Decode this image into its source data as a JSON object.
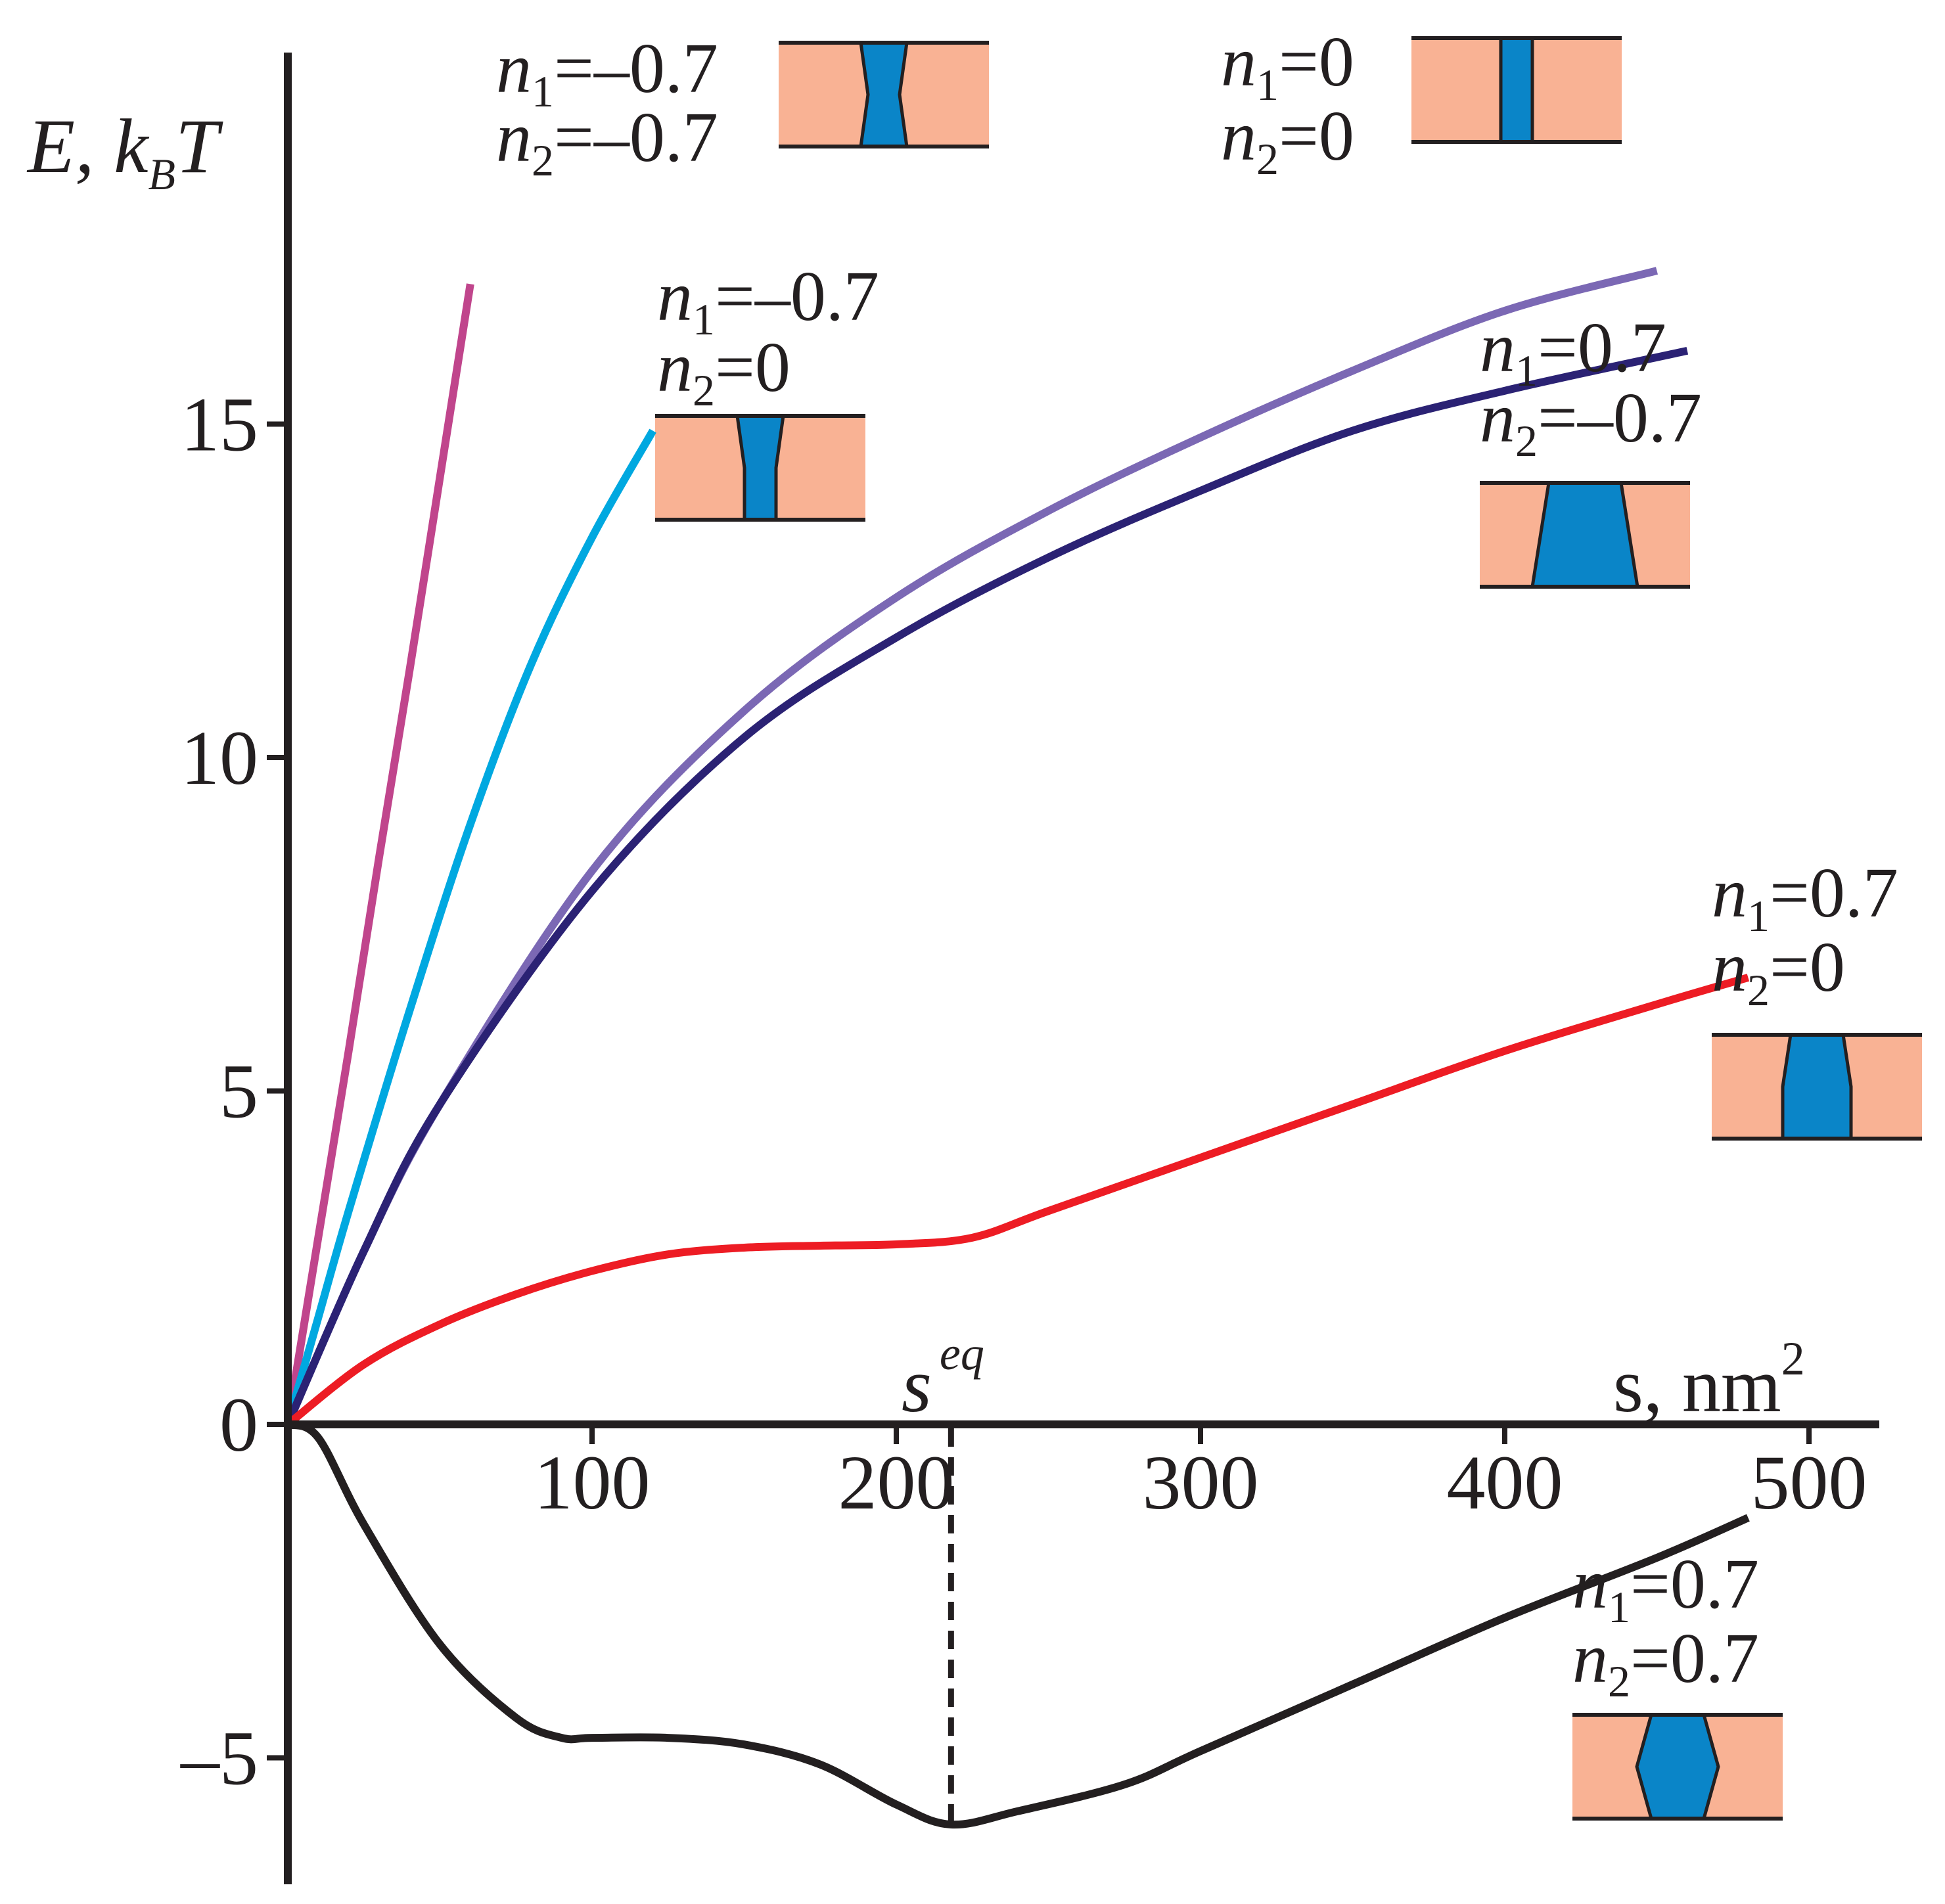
{
  "chart_data": {
    "type": "line",
    "title": "",
    "xlabel": "s, nm",
    "xlabel_superscript": "2",
    "ylabel": "E, k",
    "ylabel_subscript": "B",
    "ylabel_suffix": "T",
    "xlim": [
      -2,
      520
    ],
    "ylim": [
      -6.3,
      20
    ],
    "x_ticks": [
      100,
      200,
      300,
      400,
      500
    ],
    "x_tick_labels": [
      "100",
      "200",
      "300",
      "400",
      "500"
    ],
    "y_ticks": [
      -5,
      0,
      5,
      10,
      15
    ],
    "y_tick_labels": [
      "–5",
      "0",
      "5",
      "10",
      "15"
    ],
    "grid": false,
    "annotation": {
      "label": "s",
      "label_superscript": "eq",
      "x": 218
    },
    "series": [
      {
        "name": "n1=–0.7, n2=–0.7",
        "color": "#c0458c",
        "n1_text": "=–0.7",
        "n2_text": "=–0.7",
        "x": [
          0,
          10,
          20,
          30,
          40,
          50,
          60
        ],
        "y": [
          0,
          2.8,
          5.6,
          8.5,
          11.3,
          14.2,
          17.1
        ]
      },
      {
        "name": "n1=–0.7, n2=0",
        "color": "#00a8e0",
        "n1_text": "=–0.7",
        "n2_text": "=0",
        "x": [
          0,
          10,
          20,
          40,
          60,
          80,
          100,
          120
        ],
        "y": [
          0,
          1.6,
          3.2,
          6.2,
          9.0,
          11.4,
          13.3,
          14.9
        ]
      },
      {
        "name": "n1=0, n2=0",
        "color": "#7b68b4",
        "n1_text": "=0",
        "n2_text": "=0",
        "x": [
          0,
          25,
          50,
          100,
          150,
          200,
          250,
          300,
          350,
          400,
          450
        ],
        "y": [
          0,
          2.6,
          4.8,
          8.3,
          10.7,
          12.4,
          13.7,
          14.8,
          15.8,
          16.7,
          17.3
        ]
      },
      {
        "name": "n1=0.7, n2=–0.7",
        "color": "#2b2274",
        "n1_text": "=0.7",
        "n2_text": "=–0.7",
        "x": [
          0,
          25,
          50,
          100,
          150,
          200,
          250,
          300,
          350,
          400,
          460
        ],
        "y": [
          0,
          2.6,
          4.8,
          8.0,
          10.3,
          11.8,
          13.0,
          14.0,
          14.9,
          15.5,
          16.1
        ]
      },
      {
        "name": "n1=0.7, n2=0",
        "color": "#ed1c24",
        "n1_text": "=0.7",
        "n2_text": "=0",
        "x": [
          0,
          25,
          50,
          75,
          100,
          125,
          150,
          175,
          200,
          225,
          250,
          300,
          350,
          400,
          450,
          480
        ],
        "y": [
          0,
          0.9,
          1.5,
          1.95,
          2.3,
          2.55,
          2.65,
          2.68,
          2.7,
          2.8,
          3.2,
          4.0,
          4.8,
          5.6,
          6.3,
          6.7
        ]
      },
      {
        "name": "n1=0.7, n2=0.7",
        "color": "#231f20",
        "n1_text": "=0.7",
        "n2_text": "=0.7",
        "x": [
          0,
          10,
          25,
          50,
          75,
          90,
          100,
          125,
          150,
          175,
          200,
          218,
          240,
          275,
          300,
          350,
          400,
          450,
          480
        ],
        "y": [
          0,
          -0.2,
          -1.5,
          -3.3,
          -4.4,
          -4.7,
          -4.7,
          -4.7,
          -4.8,
          -5.1,
          -5.7,
          -6.0,
          -5.8,
          -5.4,
          -4.9,
          -3.9,
          -2.9,
          -2.0,
          -1.4
        ]
      }
    ]
  }
}
